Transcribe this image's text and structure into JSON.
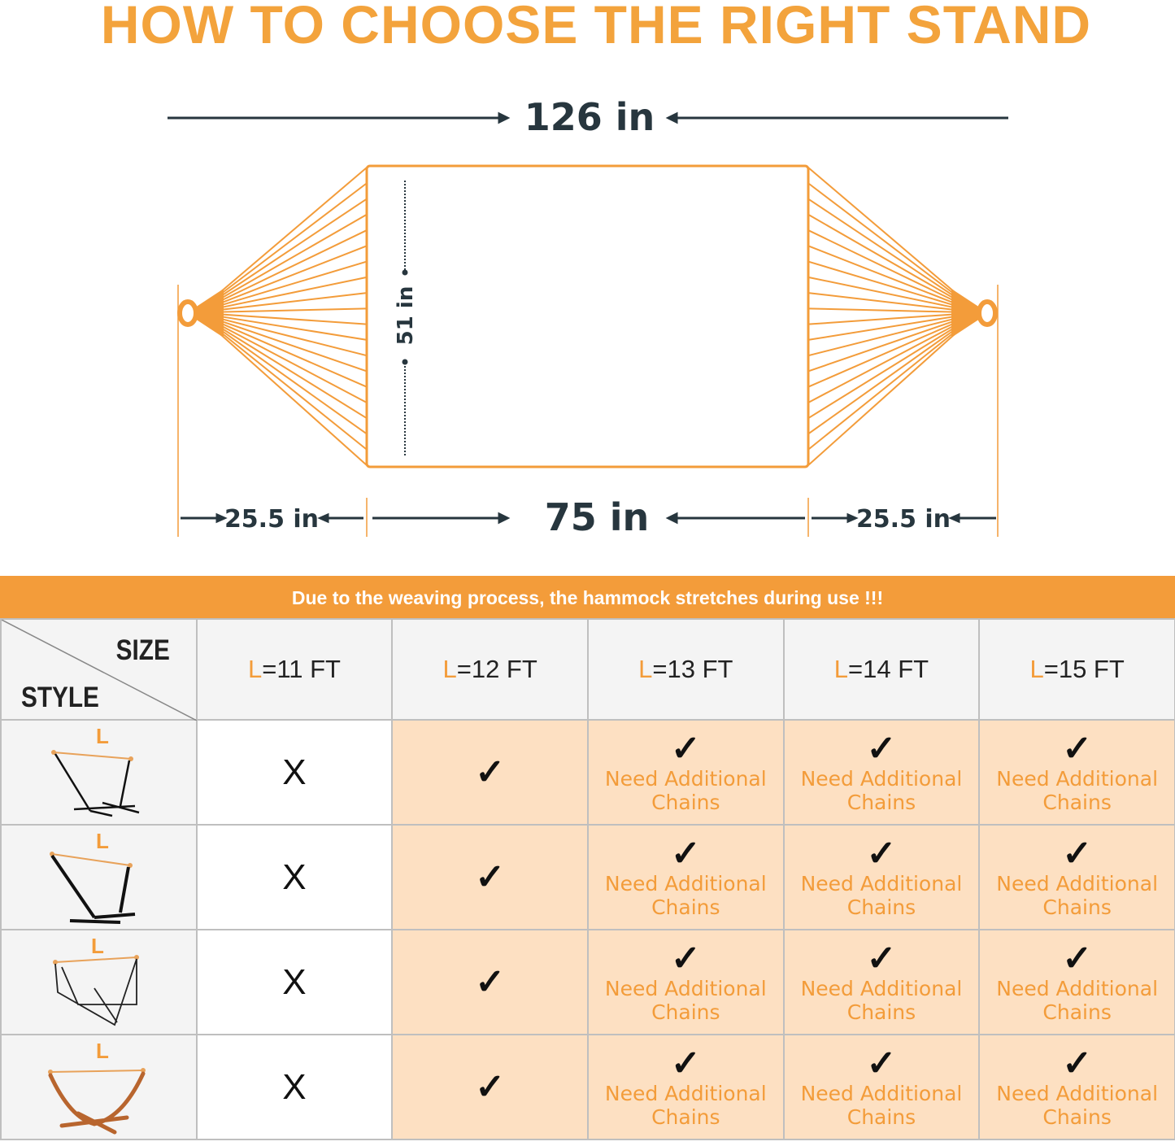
{
  "title": "HOW TO CHOOSE THE RIGHT STAND",
  "diagram": {
    "total_length": "126 in",
    "width": "51 in",
    "bed_length": "75 in",
    "left_end": "25.5 in",
    "right_end": "25.5 in"
  },
  "colors": {
    "accent": "#f39c3a",
    "peach": "#fde0c2",
    "dark_text": "#27363e"
  },
  "banner": "Due to the weaving process, the hammock stretches during use !!!",
  "table": {
    "corner_size": "SIZE",
    "corner_style": "STYLE",
    "headers": [
      {
        "l": "L",
        "rest": "=11 FT"
      },
      {
        "l": "L",
        "rest": "=12 FT"
      },
      {
        "l": "L",
        "rest": "=13 FT"
      },
      {
        "l": "L",
        "rest": "=14 FT"
      },
      {
        "l": "L",
        "rest": "=15 FT"
      }
    ],
    "rows": [
      {
        "style_label": "L",
        "style_icon": "steel-stand-tripod-icon",
        "cells": [
          "X",
          "✓",
          "✓",
          "✓",
          "✓"
        ]
      },
      {
        "style_label": "L",
        "style_icon": "steel-stand-angled-icon",
        "cells": [
          "X",
          "✓",
          "✓",
          "✓",
          "✓"
        ]
      },
      {
        "style_label": "L",
        "style_icon": "steel-stand-crossed-icon",
        "cells": [
          "X",
          "✓",
          "✓",
          "✓",
          "✓"
        ]
      },
      {
        "style_label": "L",
        "style_icon": "wooden-arc-stand-icon",
        "cells": [
          "X",
          "✓",
          "✓",
          "✓",
          "✓"
        ]
      }
    ],
    "note_line1": "Need Additional",
    "note_line2": "Chains"
  }
}
